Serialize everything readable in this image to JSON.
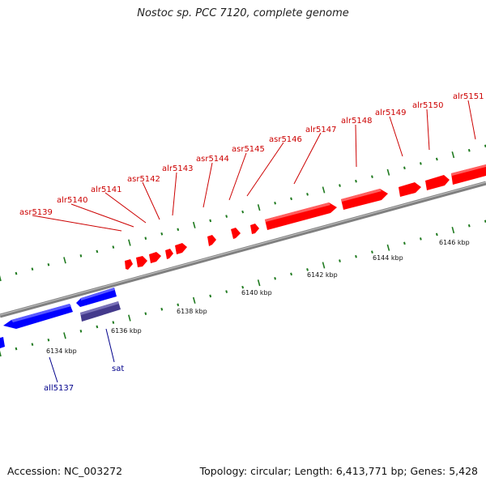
{
  "title": "Nostoc sp. PCC 7120, complete genome",
  "footer": {
    "accession": "Accession: NC_003272",
    "summary": "Topology: circular; Length: 6,413,771 bp; Genes: 5,428"
  },
  "colors": {
    "forward_gene": "#ff0000",
    "reverse_gene": "#0000ff",
    "reverse_rna": "#443a8c",
    "backbone": "#808080",
    "ticks": "#1f7a1f",
    "forward_label": "#cc0000",
    "reverse_label": "#00008b"
  },
  "scale_labels": [
    "6134 kbp",
    "6136 kbp",
    "6138 kbp",
    "6140 kbp",
    "6142 kbp",
    "6144 kbp",
    "6146 kbp"
  ],
  "forward_genes": [
    "asr5139",
    "alr5140",
    "alr5141",
    "asr5142",
    "alr5143",
    "asr5144",
    "asr5145",
    "asr5146",
    "alr5147",
    "alr5148",
    "alr5149",
    "alr5150",
    "alr5151"
  ],
  "reverse_genes": [
    "all5137",
    "sat"
  ]
}
